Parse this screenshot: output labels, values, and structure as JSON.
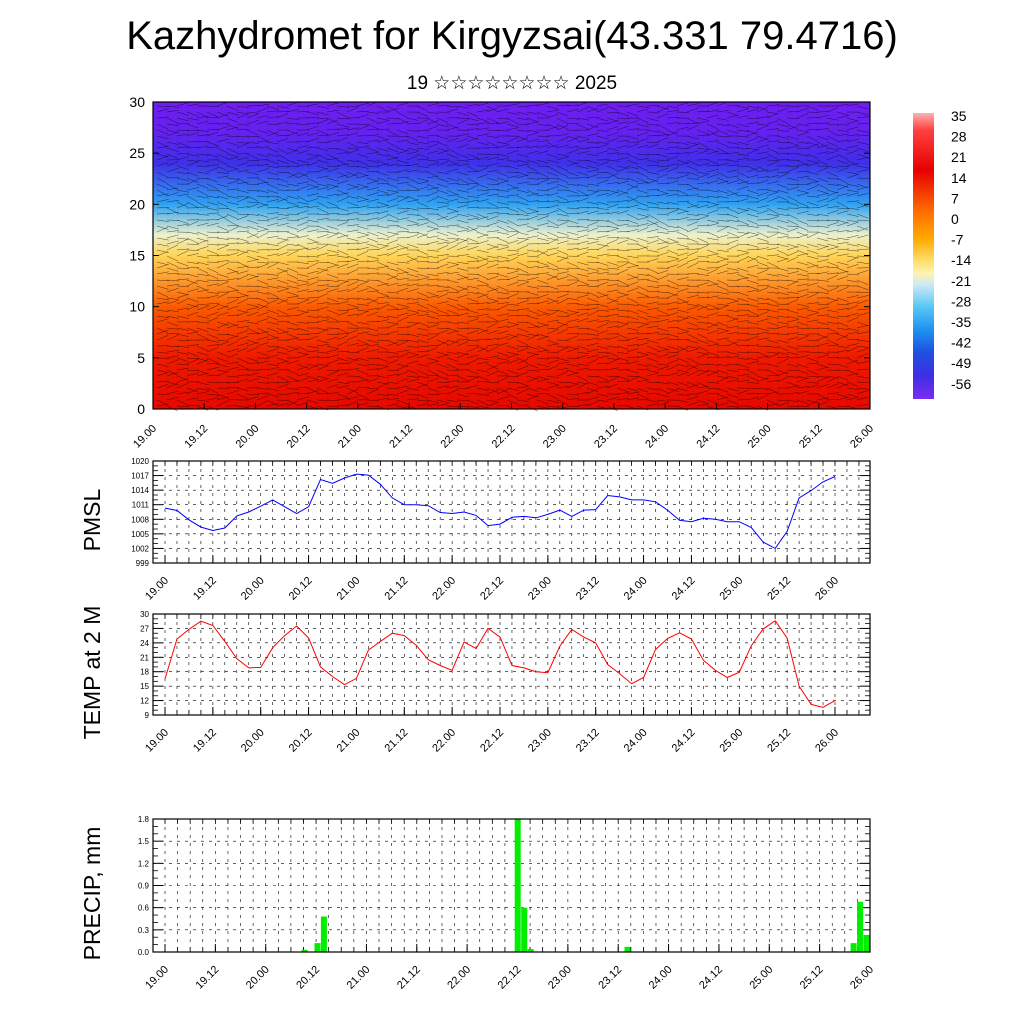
{
  "title": "Kazhydromet for Kirgyzsai(43.331 79.4716)",
  "subtitle": "19 ☆☆☆☆☆☆☆☆ 2025",
  "chart_data": [
    {
      "type": "heatmap",
      "name": "cross-section",
      "ylim": [
        0,
        30
      ],
      "yticks": [
        "0",
        "5",
        "10",
        "15",
        "20",
        "25",
        "30"
      ],
      "xticks": [
        "19.00",
        "19.12",
        "20.00",
        "20.12",
        "21.00",
        "21.12",
        "22.00",
        "22.12",
        "23.00",
        "23.12",
        "24.00",
        "24.12",
        "25.00",
        "25.12",
        "26.00"
      ],
      "colorbar_labels": [
        "35",
        "28",
        "21",
        "14",
        "7",
        "0",
        "-7",
        "-14",
        "-21",
        "-28",
        "-35",
        "-42",
        "-49",
        "-56"
      ],
      "profile": [
        {
          "y": 0,
          "value": 30
        },
        {
          "y": 5,
          "value": 25
        },
        {
          "y": 10,
          "value": 18
        },
        {
          "y": 15,
          "value": 2
        },
        {
          "y": 17,
          "value": -10
        },
        {
          "y": 20,
          "value": -28
        },
        {
          "y": 24,
          "value": -50
        },
        {
          "y": 27,
          "value": -58
        },
        {
          "y": 30,
          "value": -60
        }
      ]
    },
    {
      "type": "line",
      "name": "pmsl",
      "ylabel": "PMSL",
      "ylim": [
        999,
        1020
      ],
      "yticks": [
        "999",
        "1002",
        "1005",
        "1008",
        "1011",
        "1014",
        "1017",
        "1020"
      ],
      "xticks": [
        "19.00",
        "19.12",
        "20.00",
        "20.12",
        "21.00",
        "21.12",
        "22.00",
        "22.12",
        "23.00",
        "23.12",
        "24.00",
        "24.12",
        "25.00",
        "25.12",
        "26.00"
      ],
      "color": "#0000ff",
      "values": [
        1010.3,
        1009.8,
        1007.9,
        1006.4,
        1005.7,
        1006.2,
        1008.7,
        1009.5,
        1010.7,
        1012,
        1010.6,
        1009.2,
        1010.6,
        1016.2,
        1015.4,
        1016.5,
        1017.3,
        1017.1,
        1015.2,
        1012.4,
        1011,
        1011,
        1010.8,
        1009.4,
        1009.2,
        1009.5,
        1008.8,
        1006.7,
        1007,
        1008.4,
        1008.6,
        1008.3,
        1009,
        1009.9,
        1008.6,
        1009.9,
        1010,
        1012.9,
        1012.6,
        1012,
        1012,
        1011.6,
        1009.9,
        1007.8,
        1007.5,
        1008.2,
        1008,
        1007.5,
        1007.5,
        1006.3,
        1003.3,
        1002,
        1005.5,
        1012.4,
        1013.9,
        1015.7,
        1016.8
      ]
    },
    {
      "type": "line",
      "name": "temp2m",
      "ylabel": "TEMP at 2 M",
      "ylim": [
        9,
        30
      ],
      "yticks": [
        "9",
        "12",
        "15",
        "18",
        "21",
        "24",
        "27",
        "30"
      ],
      "xticks": [
        "19.00",
        "19.12",
        "20.00",
        "20.12",
        "21.00",
        "21.12",
        "22.00",
        "22.12",
        "23.00",
        "23.12",
        "24.00",
        "24.12",
        "25.00",
        "25.12",
        "26.00"
      ],
      "color": "#ff0000",
      "values": [
        16.5,
        24.8,
        26.8,
        28.5,
        27.6,
        24.3,
        20.7,
        18.8,
        18.9,
        23,
        25.5,
        27.5,
        25,
        19,
        17,
        15.3,
        16.6,
        22.5,
        24.3,
        26,
        25.5,
        23.5,
        20.5,
        19.3,
        18.3,
        24.2,
        22.8,
        27,
        25.2,
        19.3,
        18.8,
        18,
        17.8,
        23.3,
        26.8,
        25.2,
        24,
        19.5,
        17.6,
        15.5,
        16.8,
        22.6,
        24.9,
        26.1,
        24.8,
        20.4,
        18.3,
        16.8,
        17.9,
        23.4,
        26.9,
        28.6,
        25,
        15,
        11.2,
        10.6,
        12
      ]
    },
    {
      "type": "bar",
      "name": "precip",
      "ylabel": "PRECIP, mm",
      "ylim": [
        0,
        1.8
      ],
      "yticks": [
        "0.0",
        "0.3",
        "0.6",
        "0.9",
        "1.2",
        "1.5",
        "1.8"
      ],
      "xticks": [
        "19.00",
        "19.12",
        "20.00",
        "20.12",
        "21.00",
        "21.12",
        "22.00",
        "22.12",
        "23.00",
        "23.12",
        "24.00",
        "24.12",
        "25.00",
        "25.12",
        "26.00"
      ],
      "color": "#00ee00",
      "values": [
        0,
        0,
        0,
        0,
        0,
        0,
        0,
        0,
        0,
        0,
        0,
        0,
        0,
        0,
        0,
        0,
        0,
        0,
        0,
        0,
        0,
        0,
        0,
        0.03,
        0,
        0.12,
        0.48,
        0,
        0,
        0,
        0,
        0,
        0,
        0,
        0,
        0,
        0,
        0,
        0,
        0,
        0,
        0,
        0,
        0,
        0,
        0,
        0,
        0,
        0,
        0,
        0,
        0,
        0,
        0,
        0,
        0,
        1.8,
        0.6,
        0.04,
        0,
        0,
        0,
        0,
        0,
        0,
        0,
        0,
        0,
        0,
        0,
        0,
        0,
        0,
        0.07,
        0,
        0,
        0.01,
        0.01,
        0,
        0,
        0,
        0,
        0,
        0,
        0,
        0,
        0,
        0,
        0,
        0,
        0,
        0,
        0,
        0,
        0,
        0,
        0,
        0,
        0,
        0,
        0,
        0,
        0,
        0,
        0,
        0.01,
        0,
        0,
        0.12,
        0.68,
        0.23
      ]
    }
  ]
}
